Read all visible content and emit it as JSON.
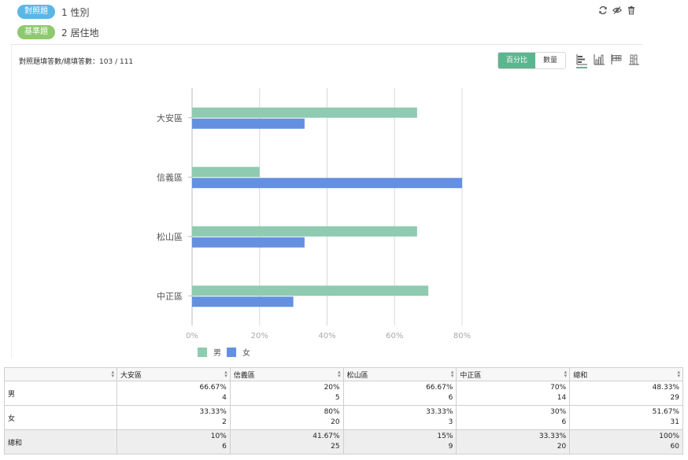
{
  "header": {
    "tags": [
      {
        "pill": "對照題",
        "text": "1 性別",
        "color": "#5bb6e8"
      },
      {
        "pill": "基準題",
        "text": "2 居住地",
        "color": "#8ec96f"
      }
    ],
    "icons": [
      "refresh-icon",
      "eye-icon",
      "trash-icon"
    ]
  },
  "summary": "對照題填答數/總填答數：103 / 111",
  "toggle": {
    "percent_label": "百分比",
    "count_label": "數量",
    "selected": "percent"
  },
  "chart_types": [
    "horizontal-bar-icon",
    "vertical-bar-icon",
    "stacked-horizontal-icon",
    "stacked-vertical-icon"
  ],
  "colors": {
    "male": "#8ecbb1",
    "female": "#6390e0",
    "accent": "#5cb58e"
  },
  "chart_data": {
    "type": "bar",
    "orientation": "horizontal",
    "categories": [
      "大安區",
      "信義區",
      "松山區",
      "中正區"
    ],
    "series": [
      {
        "name": "男",
        "values": [
          66.67,
          20,
          66.67,
          70
        ]
      },
      {
        "name": "女",
        "values": [
          33.33,
          80,
          33.33,
          30
        ]
      }
    ],
    "xticks": [
      "0%",
      "20%",
      "40%",
      "60%",
      "80%"
    ],
    "xlim": [
      0,
      80
    ],
    "grid": true,
    "legend": "bottom-left"
  },
  "table": {
    "columns": [
      "",
      "大安區",
      "信義區",
      "松山區",
      "中正區",
      "總和"
    ],
    "rows": [
      {
        "label": "男",
        "cells": [
          [
            "66.67%",
            "4"
          ],
          [
            "20%",
            "5"
          ],
          [
            "66.67%",
            "6"
          ],
          [
            "70%",
            "14"
          ],
          [
            "48.33%",
            "29"
          ]
        ]
      },
      {
        "label": "女",
        "cells": [
          [
            "33.33%",
            "2"
          ],
          [
            "80%",
            "20"
          ],
          [
            "33.33%",
            "3"
          ],
          [
            "30%",
            "6"
          ],
          [
            "51.67%",
            "31"
          ]
        ]
      },
      {
        "label": "總和",
        "cells": [
          [
            "10%",
            "6"
          ],
          [
            "41.67%",
            "25"
          ],
          [
            "15%",
            "9"
          ],
          [
            "33.33%",
            "20"
          ],
          [
            "100%",
            "60"
          ]
        ]
      }
    ]
  }
}
